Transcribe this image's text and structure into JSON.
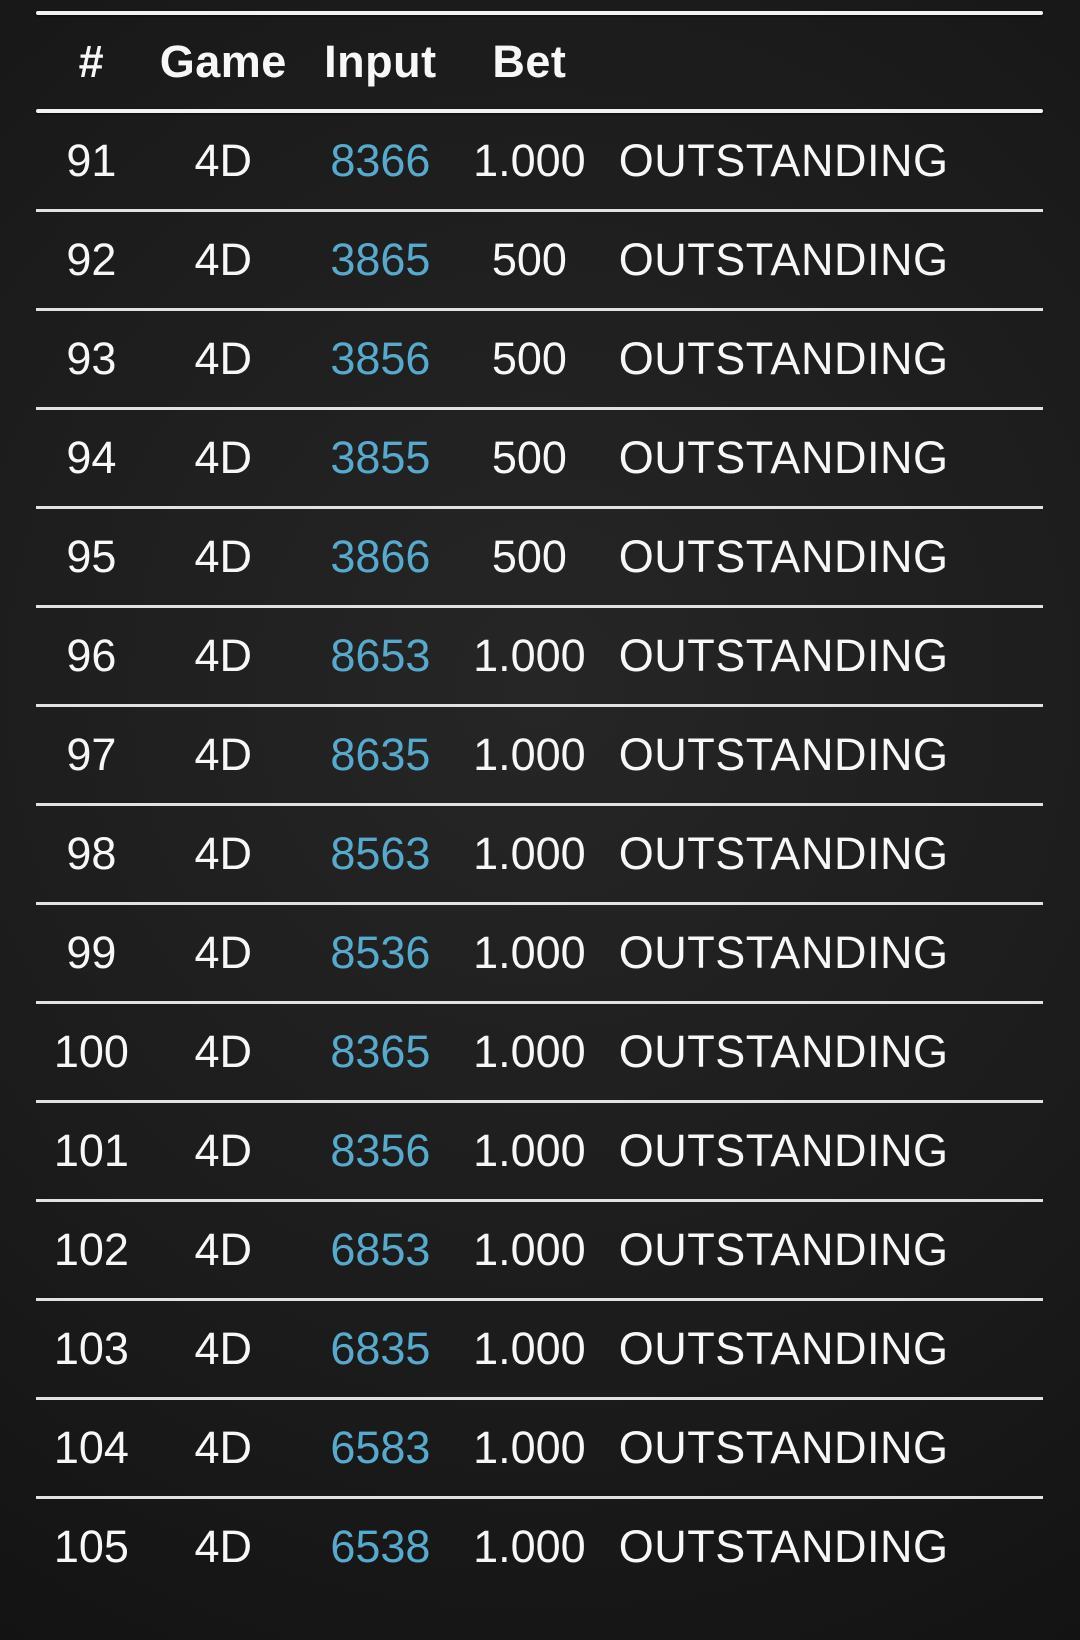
{
  "colors": {
    "input_link": "#55aacd",
    "row_text": "#f7f7f7",
    "divider": "#e2e2e2",
    "header_line": "#f2f2f2",
    "background": "#1b1b1b"
  },
  "table": {
    "columns": {
      "number": "#",
      "game": "Game",
      "input": "Input",
      "bet": "Bet",
      "status": ""
    },
    "rows": [
      {
        "num": "91",
        "game": "4D",
        "input": "8366",
        "bet": "1.000",
        "status": "OUTSTANDING"
      },
      {
        "num": "92",
        "game": "4D",
        "input": "3865",
        "bet": "500",
        "status": "OUTSTANDING"
      },
      {
        "num": "93",
        "game": "4D",
        "input": "3856",
        "bet": "500",
        "status": "OUTSTANDING"
      },
      {
        "num": "94",
        "game": "4D",
        "input": "3855",
        "bet": "500",
        "status": "OUTSTANDING"
      },
      {
        "num": "95",
        "game": "4D",
        "input": "3866",
        "bet": "500",
        "status": "OUTSTANDING"
      },
      {
        "num": "96",
        "game": "4D",
        "input": "8653",
        "bet": "1.000",
        "status": "OUTSTANDING"
      },
      {
        "num": "97",
        "game": "4D",
        "input": "8635",
        "bet": "1.000",
        "status": "OUTSTANDING"
      },
      {
        "num": "98",
        "game": "4D",
        "input": "8563",
        "bet": "1.000",
        "status": "OUTSTANDING"
      },
      {
        "num": "99",
        "game": "4D",
        "input": "8536",
        "bet": "1.000",
        "status": "OUTSTANDING"
      },
      {
        "num": "100",
        "game": "4D",
        "input": "8365",
        "bet": "1.000",
        "status": "OUTSTANDING"
      },
      {
        "num": "101",
        "game": "4D",
        "input": "8356",
        "bet": "1.000",
        "status": "OUTSTANDING"
      },
      {
        "num": "102",
        "game": "4D",
        "input": "6853",
        "bet": "1.000",
        "status": "OUTSTANDING"
      },
      {
        "num": "103",
        "game": "4D",
        "input": "6835",
        "bet": "1.000",
        "status": "OUTSTANDING"
      },
      {
        "num": "104",
        "game": "4D",
        "input": "6583",
        "bet": "1.000",
        "status": "OUTSTANDING"
      },
      {
        "num": "105",
        "game": "4D",
        "input": "6538",
        "bet": "1.000",
        "status": "OUTSTANDING"
      }
    ]
  }
}
